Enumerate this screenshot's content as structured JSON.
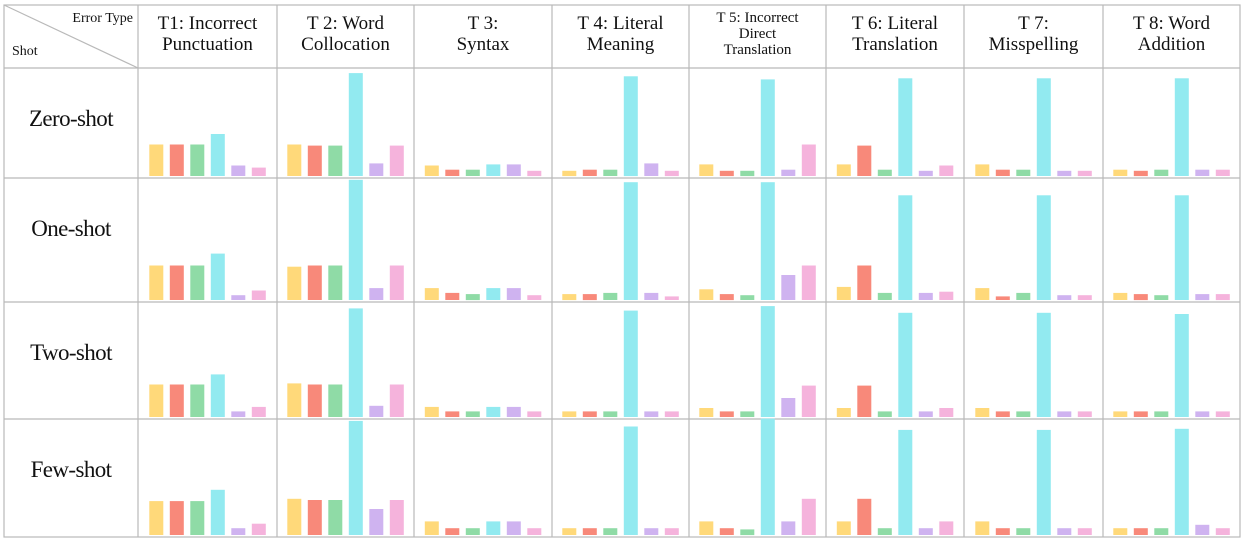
{
  "corner": {
    "column_axis_label": "Error Type",
    "row_axis_label": "Shot"
  },
  "columns": [
    {
      "lines": [
        "T1: Incorrect",
        "Punctuation"
      ],
      "small": false
    },
    {
      "lines": [
        "T 2: Word",
        "Collocation"
      ],
      "small": false
    },
    {
      "lines": [
        "T 3:",
        "Syntax"
      ],
      "small": false
    },
    {
      "lines": [
        "T 4: Literal",
        "Meaning"
      ],
      "small": false
    },
    {
      "lines": [
        "T 5: Incorrect",
        "Direct",
        "Translation"
      ],
      "small": true
    },
    {
      "lines": [
        "T 6: Literal",
        "Translation"
      ],
      "small": false
    },
    {
      "lines": [
        "T 7:",
        "Misspelling"
      ],
      "small": false
    },
    {
      "lines": [
        "T 8: Word",
        "Addition"
      ],
      "small": false
    }
  ],
  "rows": [
    "Zero-shot",
    "One-shot",
    "Two-shot",
    "Few-shot"
  ],
  "colors": [
    "#FFD97A",
    "#F8897A",
    "#8FDBA6",
    "#92EAF0",
    "#CFB3F0",
    "#F5B3DC"
  ],
  "chart_data": {
    "type": "bar",
    "ylim": [
      0,
      1
    ],
    "grid": false,
    "legend": "none",
    "panels": [
      [
        [
          0.3,
          0.3,
          0.3,
          0.4,
          0.1,
          0.08
        ],
        [
          0.3,
          0.29,
          0.29,
          0.98,
          0.12,
          0.29
        ],
        [
          0.1,
          0.06,
          0.06,
          0.11,
          0.11,
          0.05
        ],
        [
          0.05,
          0.06,
          0.06,
          0.95,
          0.12,
          0.05
        ],
        [
          0.11,
          0.05,
          0.05,
          0.92,
          0.06,
          0.3
        ],
        [
          0.11,
          0.29,
          0.06,
          0.93,
          0.05,
          0.1
        ],
        [
          0.11,
          0.06,
          0.06,
          0.93,
          0.05,
          0.05
        ],
        [
          0.06,
          0.05,
          0.06,
          0.93,
          0.06,
          0.06
        ]
      ],
      [
        [
          0.29,
          0.29,
          0.29,
          0.39,
          0.04,
          0.08
        ],
        [
          0.28,
          0.29,
          0.29,
          1.01,
          0.1,
          0.29
        ],
        [
          0.1,
          0.06,
          0.05,
          0.1,
          0.1,
          0.04
        ],
        [
          0.05,
          0.05,
          0.06,
          0.99,
          0.06,
          0.03
        ],
        [
          0.09,
          0.05,
          0.04,
          0.99,
          0.21,
          0.29
        ],
        [
          0.11,
          0.29,
          0.06,
          0.88,
          0.06,
          0.07
        ],
        [
          0.1,
          0.03,
          0.06,
          0.88,
          0.04,
          0.04
        ],
        [
          0.06,
          0.05,
          0.04,
          0.88,
          0.05,
          0.05
        ]
      ],
      [
        [
          0.29,
          0.29,
          0.29,
          0.38,
          0.05,
          0.09
        ],
        [
          0.3,
          0.29,
          0.29,
          0.97,
          0.1,
          0.29
        ],
        [
          0.09,
          0.05,
          0.05,
          0.09,
          0.09,
          0.05
        ],
        [
          0.05,
          0.05,
          0.05,
          0.95,
          0.05,
          0.05
        ],
        [
          0.08,
          0.05,
          0.05,
          0.99,
          0.17,
          0.28
        ],
        [
          0.08,
          0.28,
          0.05,
          0.93,
          0.05,
          0.08
        ],
        [
          0.08,
          0.05,
          0.05,
          0.93,
          0.05,
          0.05
        ],
        [
          0.05,
          0.05,
          0.05,
          0.92,
          0.05,
          0.05
        ]
      ],
      [
        [
          0.3,
          0.3,
          0.3,
          0.4,
          0.06,
          0.1
        ],
        [
          0.32,
          0.31,
          0.31,
          1.01,
          0.23,
          0.31
        ],
        [
          0.12,
          0.06,
          0.06,
          0.12,
          0.12,
          0.06
        ],
        [
          0.06,
          0.06,
          0.06,
          0.96,
          0.06,
          0.06
        ],
        [
          0.12,
          0.06,
          0.05,
          1.03,
          0.12,
          0.32
        ],
        [
          0.12,
          0.32,
          0.06,
          0.93,
          0.06,
          0.12
        ],
        [
          0.12,
          0.06,
          0.06,
          0.93,
          0.06,
          0.06
        ],
        [
          0.06,
          0.06,
          0.06,
          0.94,
          0.09,
          0.06
        ]
      ]
    ]
  }
}
